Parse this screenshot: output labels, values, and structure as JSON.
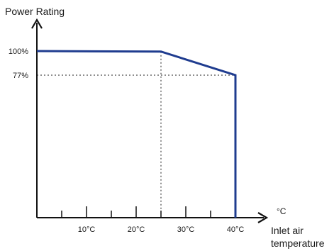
{
  "chart_data": {
    "type": "line",
    "ylabel": "Power Rating",
    "xunit": "°C",
    "xlabel": [
      "Inlet air",
      "temperature"
    ],
    "x_ticks": [
      5,
      10,
      15,
      20,
      25,
      30,
      35,
      40
    ],
    "x_tick_labels": [
      {
        "x": 10,
        "label": "10°C"
      },
      {
        "x": 20,
        "label": "20°C"
      },
      {
        "x": 30,
        "label": "30°C"
      },
      {
        "x": 40,
        "label": "40°C"
      }
    ],
    "y_tick_labels": [
      {
        "y": 100,
        "label": "100%"
      },
      {
        "y": 77,
        "label": "77%"
      }
    ],
    "xlim": [
      0,
      45
    ],
    "ylim": [
      0,
      110
    ],
    "series": [
      {
        "color": "#1f3c8f",
        "points": [
          [
            0,
            100
          ],
          [
            25,
            99.5
          ],
          [
            40,
            77
          ],
          [
            40,
            0
          ]
        ]
      }
    ],
    "reference_lines": [
      {
        "from": [
          25,
          99.5
        ],
        "to": [
          25,
          0
        ]
      },
      {
        "from": [
          0,
          77
        ],
        "to": [
          40,
          77
        ]
      }
    ]
  }
}
